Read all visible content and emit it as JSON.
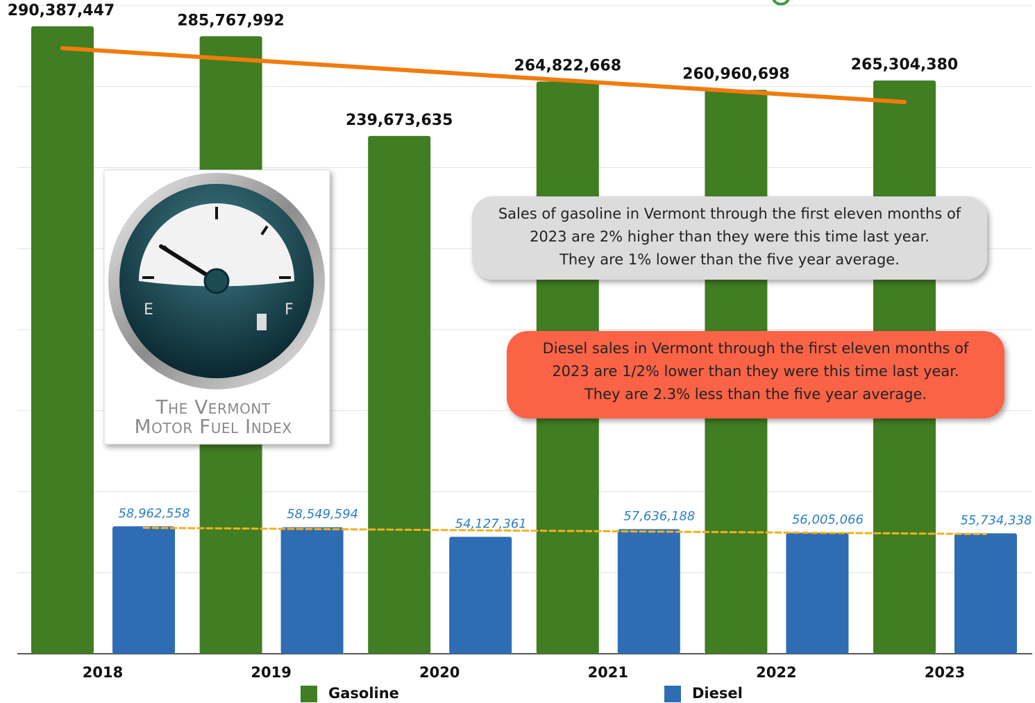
{
  "chart_data": {
    "type": "bar",
    "categories": [
      "2018",
      "2019",
      "2020",
      "2021",
      "2022",
      "2023"
    ],
    "series": [
      {
        "name": "Gasoline",
        "color": "#417d22",
        "values": [
          290387447,
          285767992,
          239673635,
          264822668,
          260960698,
          265304380
        ],
        "value_labels": [
          "290,387,447",
          "285,767,992",
          "239,673,635",
          "264,822,668",
          "260,960,698",
          "265,304,380"
        ],
        "trendline": "linear",
        "trend_color": "#f07c0c"
      },
      {
        "name": "Diesel",
        "color": "#2e6db4",
        "values": [
          58962558,
          58549594,
          54127361,
          57636188,
          56005066,
          55734338
        ],
        "value_labels": [
          "58,962,558",
          "58,549,594",
          "54,127,361",
          "57,636,188",
          "56,005,066",
          "55,734,338"
        ],
        "trendline": "linear",
        "trend_color": "#f2b01e"
      }
    ],
    "ylim": [
      0,
      300000000
    ],
    "yticks": [
      0,
      37500000,
      75000000,
      112500000,
      150000000,
      187500000,
      225000000,
      262500000,
      300000000
    ],
    "grid": true,
    "annotations": [
      {
        "color": "#dcdcdc",
        "lines": [
          "Sales of gasoline in Vermont through the first eleven months of",
          "2023 are 2% higher than they were this time last year.",
          "They are 1% lower than the five year average."
        ]
      },
      {
        "color": "#fb6347",
        "lines": [
          "Diesel sales in Vermont through the first eleven months of",
          "2023 are 1/2% lower than they were this time last year.",
          "They are 2.3% less than the five year average."
        ]
      }
    ]
  },
  "logo": {
    "lines": [
      "The Vermont",
      "Motor Fuel Index"
    ]
  }
}
